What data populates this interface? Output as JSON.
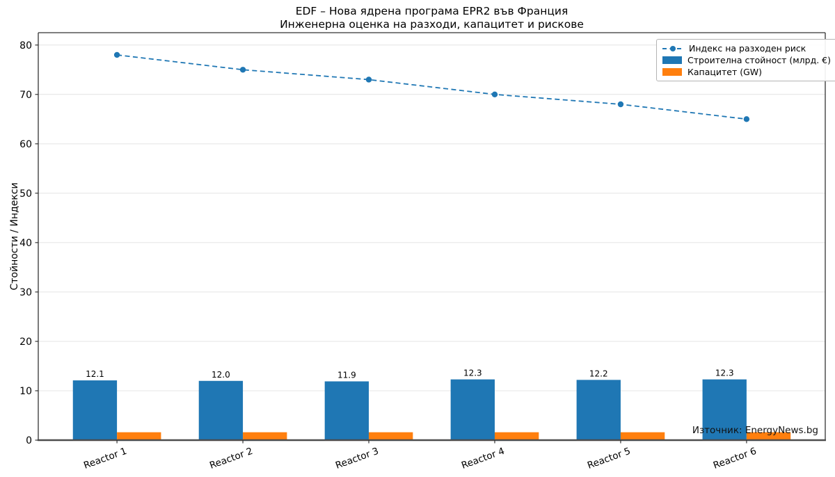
{
  "chart_data": {
    "type": "bar",
    "combo": "grouped bars + dashed line with circular markers",
    "title": "EDF – Нова ядрена програма EPR2 във Франция",
    "subtitle": "Инженерна оценка на разходи, капацитет и рискове",
    "ylabel": "Стойности / Индекси",
    "xlabel": "",
    "categories": [
      "Reactor 1",
      "Reactor 2",
      "Reactor 3",
      "Reactor 4",
      "Reactor 5",
      "Reactor 6"
    ],
    "series": [
      {
        "name": "Индекс на разходен риск",
        "type": "line",
        "line_style": "dashed",
        "marker": "circle",
        "color": "#1f77b4",
        "values": [
          78,
          75,
          73,
          70,
          68,
          65
        ]
      },
      {
        "name": "Строителна стойност (млрд. €)",
        "type": "bar",
        "color": "#1f77b4",
        "values": [
          12.1,
          12.0,
          11.9,
          12.3,
          12.2,
          12.3
        ],
        "value_labels": [
          "12.1",
          "12.0",
          "11.9",
          "12.3",
          "12.2",
          "12.3"
        ]
      },
      {
        "name": "Капацитет (GW)",
        "type": "bar",
        "color": "#ff7f0e",
        "values": [
          1.6,
          1.6,
          1.6,
          1.6,
          1.6,
          1.6
        ]
      }
    ],
    "y_ticks": [
      "0",
      "10",
      "20",
      "30",
      "40",
      "50",
      "60",
      "70",
      "80"
    ],
    "y_tick_values": [
      0,
      10,
      20,
      30,
      40,
      50,
      60,
      70,
      80
    ],
    "ylim": [
      0,
      82.5
    ],
    "x_tick_rotation_deg": 20,
    "grid": "horizontal",
    "gridline_color": "#e4e4e4",
    "axis_color": "#333333",
    "text_color": "#000000",
    "legend_position": "top-right",
    "source": "Източник: EnergyNews.bg"
  }
}
